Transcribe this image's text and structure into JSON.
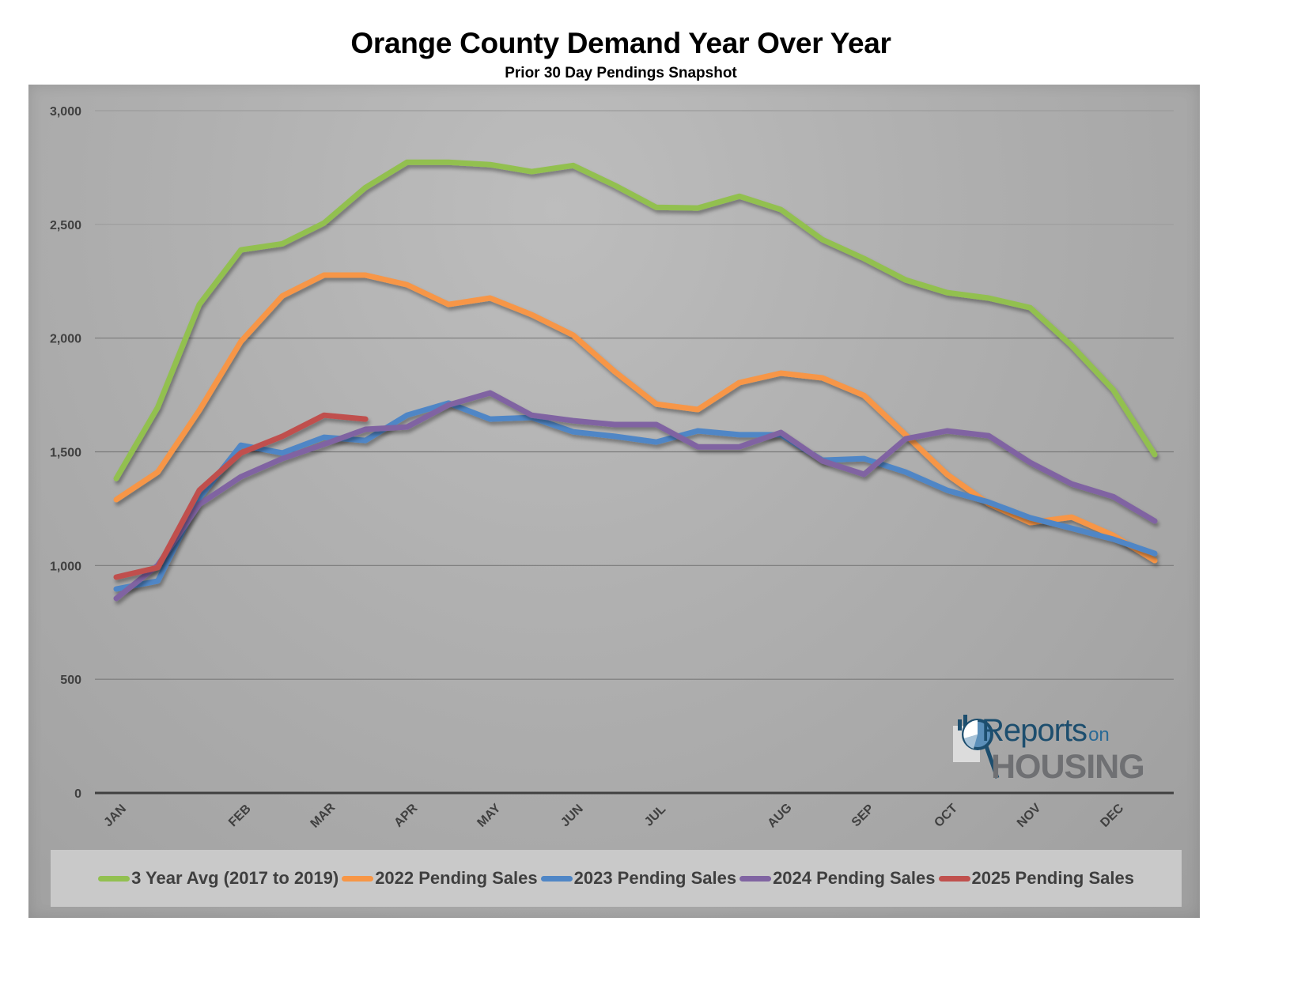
{
  "chart_data": {
    "type": "line",
    "title": "Orange County Demand Year Over Year",
    "subtitle": "Prior 30 Day Pendings Snapshot",
    "xlabel": "",
    "ylabel": "",
    "ylim": [
      0,
      3000
    ],
    "yticks": [
      0,
      500,
      1000,
      1500,
      2000,
      2500,
      3000
    ],
    "ytick_labels": [
      "0",
      "500",
      "1,000",
      "1,500",
      "2,000",
      "2,500",
      "3,000"
    ],
    "grid": true,
    "legend_position": "bottom",
    "num_points": 26,
    "month_labels": [
      {
        "label": "JAN",
        "index": 0
      },
      {
        "label": "FEB",
        "index": 3
      },
      {
        "label": "MAR",
        "index": 5
      },
      {
        "label": "APR",
        "index": 7
      },
      {
        "label": "MAY",
        "index": 9
      },
      {
        "label": "JUN",
        "index": 11
      },
      {
        "label": "JUL",
        "index": 13
      },
      {
        "label": "AUG",
        "index": 16
      },
      {
        "label": "SEP",
        "index": 18
      },
      {
        "label": "OCT",
        "index": 20
      },
      {
        "label": "NOV",
        "index": 22
      },
      {
        "label": "DEC",
        "index": 24
      }
    ],
    "series": [
      {
        "name": "3 Year Avg (2017 to 2019)",
        "color": "#92c050",
        "values": [
          1383,
          1696,
          2148,
          2388,
          2415,
          2506,
          2662,
          2773,
          2773,
          2763,
          2732,
          2759,
          2672,
          2575,
          2572,
          2624,
          2565,
          2433,
          2350,
          2256,
          2200,
          2176,
          2134,
          1967,
          1773,
          1488
        ]
      },
      {
        "name": "2022 Pending Sales",
        "color": "#f79646",
        "values": [
          1290,
          1411,
          1682,
          1985,
          2186,
          2277,
          2277,
          2235,
          2148,
          2176,
          2103,
          2013,
          1853,
          1710,
          1686,
          1804,
          1846,
          1825,
          1748,
          1575,
          1401,
          1272,
          1189,
          1213,
          1133,
          1022
        ]
      },
      {
        "name": "2023 Pending Sales",
        "color": "#4f86c6",
        "values": [
          897,
          932,
          1296,
          1529,
          1495,
          1564,
          1550,
          1661,
          1714,
          1644,
          1651,
          1588,
          1568,
          1543,
          1592,
          1575,
          1575,
          1463,
          1470,
          1411,
          1331,
          1279,
          1210,
          1164,
          1116,
          1053
        ]
      },
      {
        "name": "2024 Pending Sales",
        "color": "#8064a2",
        "values": [
          855,
          1001,
          1269,
          1390,
          1470,
          1533,
          1599,
          1609,
          1706,
          1759,
          1661,
          1637,
          1620,
          1620,
          1522,
          1522,
          1585,
          1460,
          1401,
          1557,
          1592,
          1571,
          1453,
          1359,
          1303,
          1196
        ]
      },
      {
        "name": "2025 Pending Sales",
        "color": "#c0504d",
        "values": [
          949,
          991,
          1331,
          1495,
          1568,
          1661,
          1644
        ]
      }
    ]
  },
  "logo": {
    "word1": "Reports",
    "word2": "on",
    "word3": "HOUSING"
  }
}
